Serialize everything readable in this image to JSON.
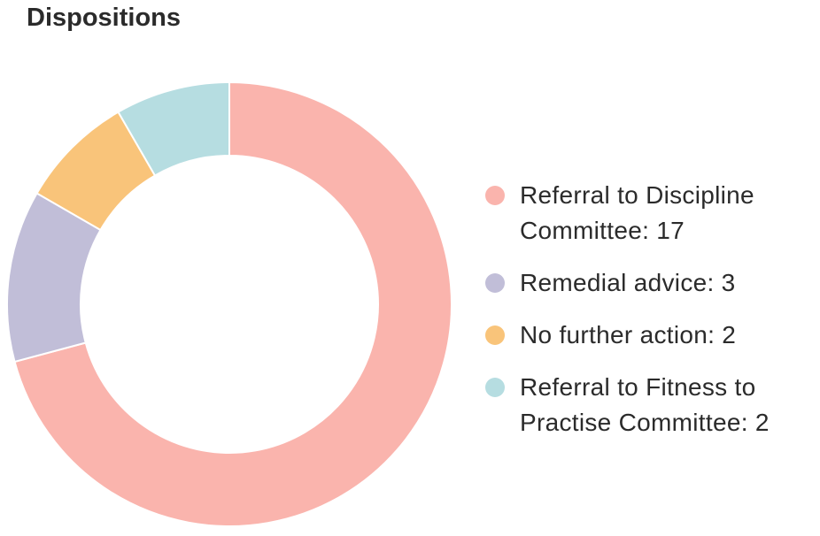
{
  "chart_data": {
    "type": "donut",
    "title": "Dispositions",
    "categories": [
      "Referral to Discipline Committee: 17",
      "Remedial advice: 3",
      "No further action: 2",
      "Referral to Fitness to Practise Committee: 2"
    ],
    "values": [
      17,
      3,
      2,
      2
    ],
    "colors": [
      "#fab4ad",
      "#c1bed8",
      "#f9c47a",
      "#b6dde1"
    ],
    "legend": "right"
  }
}
